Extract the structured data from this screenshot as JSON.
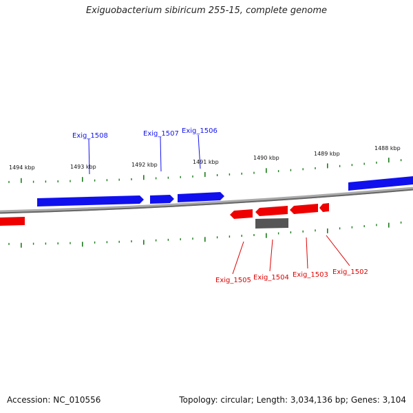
{
  "title": "Exiguobacterium sibiricum 255-15, complete genome",
  "footer": {
    "accession": "Accession: NC_010556",
    "summary": "Topology: circular; Length: 3,034,136 bp; Genes: 3,104"
  },
  "colors": {
    "plus_strand": "#1010ee",
    "minus_strand": "#ee0000",
    "pseudo_gene": "#555555",
    "backbone": "#777777",
    "ticks": "#1a7a1a"
  },
  "kbp_labels": [
    "1494 kbp",
    "1493 kbp",
    "1492 kbp",
    "1491 kbp",
    "1490 kbp",
    "1489 kbp",
    "1488 kbp"
  ],
  "genes": {
    "top": [
      {
        "name": "Exig_1508",
        "color": "#1010ee"
      },
      {
        "name": "Exig_1507",
        "color": "#1010ee"
      },
      {
        "name": "Exig_1506",
        "color": "#1010ee"
      }
    ],
    "bottom": [
      {
        "name": "Exig_1505",
        "color": "#dd0000"
      },
      {
        "name": "Exig_1504",
        "color": "#dd0000"
      },
      {
        "name": "Exig_1503",
        "color": "#dd0000"
      },
      {
        "name": "Exig_1502",
        "color": "#dd0000"
      }
    ]
  }
}
